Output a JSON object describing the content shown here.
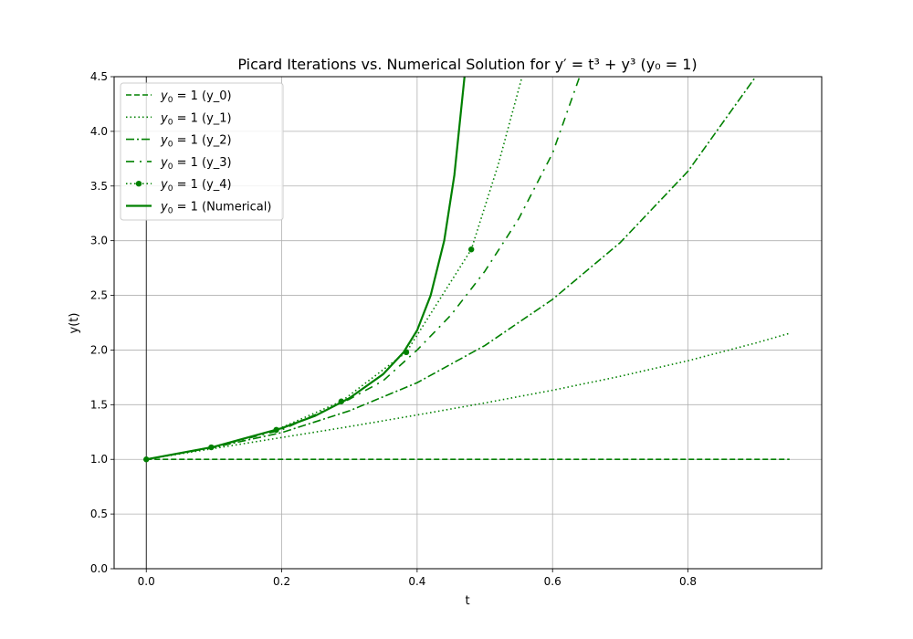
{
  "chart_data": {
    "type": "line",
    "title": "Picard Iterations vs. Numerical Solution for y′ = t³ + y³ (y₀ = 1)",
    "xlabel": "t",
    "ylabel": "y(t)",
    "xlim": [
      -0.0475,
      0.9975
    ],
    "ylim": [
      0,
      4.5
    ],
    "xticks": [
      0.0,
      0.2,
      0.4,
      0.6,
      0.8
    ],
    "xtick_labels": [
      "0.0",
      "0.2",
      "0.4",
      "0.6",
      "0.8"
    ],
    "yticks": [
      0.0,
      0.5,
      1.0,
      1.5,
      2.0,
      2.5,
      3.0,
      3.5,
      4.0,
      4.5
    ],
    "ytick_labels": [
      "0.0",
      "0.5",
      "1.0",
      "1.5",
      "2.0",
      "2.5",
      "3.0",
      "3.5",
      "4.0",
      "4.5"
    ],
    "grid": true,
    "legend_position": "top-left",
    "color": "#008000",
    "series": [
      {
        "name": "y₀ = 1 (y_0)",
        "style": "dashed",
        "x": [
          0,
          0.95
        ],
        "y": [
          1.0,
          1.0
        ]
      },
      {
        "name": "y₀ = 1 (y_1)",
        "style": "dotted",
        "x": [
          0,
          0.1,
          0.2,
          0.3,
          0.4,
          0.5,
          0.6,
          0.7,
          0.8,
          0.9,
          0.95
        ],
        "y": [
          1.0,
          1.1,
          1.2,
          1.3,
          1.406,
          1.516,
          1.632,
          1.76,
          1.902,
          2.064,
          2.153
        ]
      },
      {
        "name": "y₀ = 1 (y_2)",
        "style": "dashdot",
        "x": [
          0,
          0.1,
          0.2,
          0.3,
          0.4,
          0.5,
          0.6,
          0.7,
          0.8,
          0.9
        ],
        "y": [
          1.0,
          1.11,
          1.245,
          1.444,
          1.701,
          2.041,
          2.463,
          2.983,
          3.635,
          4.5
        ]
      },
      {
        "name": "y₀ = 1 (y_3)",
        "style": "sparse-dashdot",
        "x": [
          0,
          0.1,
          0.2,
          0.3,
          0.35,
          0.4,
          0.45,
          0.5,
          0.55,
          0.6,
          0.64
        ],
        "y": [
          1.0,
          1.115,
          1.27,
          1.55,
          1.72,
          2.0,
          2.32,
          2.72,
          3.2,
          3.8,
          4.5
        ]
      },
      {
        "name": "y₀ = 1 (y_4)",
        "style": "dotted-marker",
        "x": [
          0,
          0.096,
          0.192,
          0.288,
          0.384,
          0.48,
          0.52,
          0.555
        ],
        "y": [
          1.0,
          1.11,
          1.27,
          1.53,
          1.98,
          2.92,
          3.7,
          4.5
        ]
      },
      {
        "name": "y₀ = 1 (Numerical)",
        "style": "solid",
        "x": [
          0,
          0.1,
          0.2,
          0.25,
          0.3,
          0.35,
          0.38,
          0.4,
          0.42,
          0.44,
          0.455,
          0.47
        ],
        "y": [
          1.0,
          1.115,
          1.285,
          1.4,
          1.56,
          1.78,
          1.98,
          2.18,
          2.5,
          3.0,
          3.6,
          4.5
        ]
      }
    ],
    "legend_entries": [
      {
        "prefix": "y",
        "sub": "0",
        "suffix": " = 1 (y_0)"
      },
      {
        "prefix": "y",
        "sub": "0",
        "suffix": " = 1 (y_1)"
      },
      {
        "prefix": "y",
        "sub": "0",
        "suffix": " = 1 (y_2)"
      },
      {
        "prefix": "y",
        "sub": "0",
        "suffix": " = 1 (y_3)"
      },
      {
        "prefix": "y",
        "sub": "0",
        "suffix": " = 1 (y_4)"
      },
      {
        "prefix": "y",
        "sub": "0",
        "suffix": " = 1 (Numerical)"
      }
    ]
  }
}
